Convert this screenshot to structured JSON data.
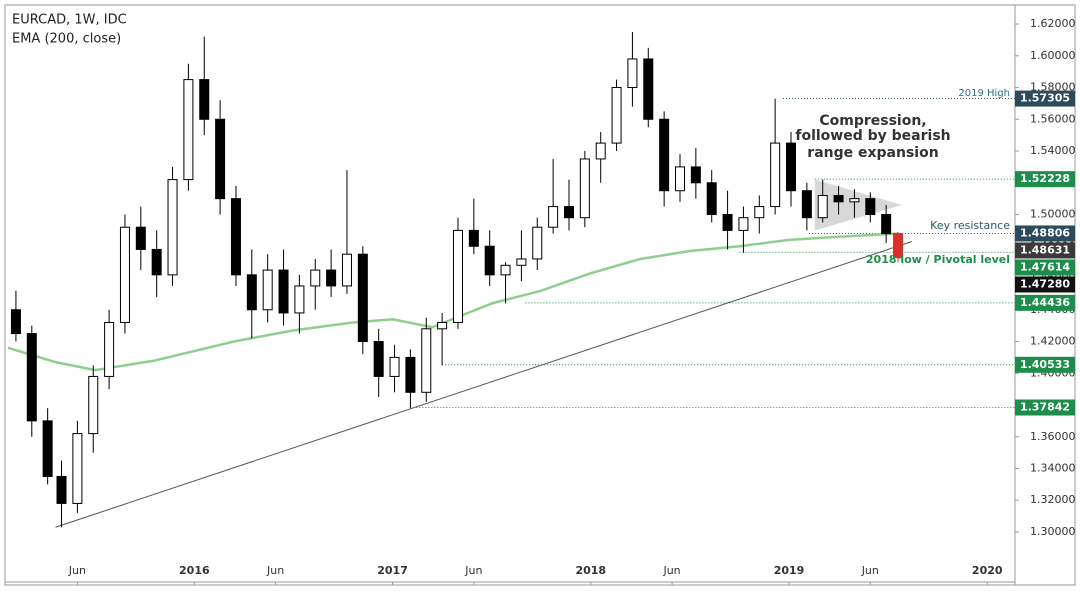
{
  "chart_data": {
    "type": "candlestick",
    "title": "EURCAD, 1W, IDC",
    "subtitle": "EMA (200, close)",
    "x": [
      2015.1,
      2015.18,
      2015.26,
      2015.33,
      2015.41,
      2015.49,
      2015.57,
      2015.65,
      2015.73,
      2015.81,
      2015.89,
      2015.97,
      2016.05,
      2016.13,
      2016.21,
      2016.29,
      2016.37,
      2016.45,
      2016.53,
      2016.61,
      2016.69,
      2016.77,
      2016.85,
      2016.93,
      2017.01,
      2017.09,
      2017.17,
      2017.25,
      2017.33,
      2017.41,
      2017.49,
      2017.57,
      2017.65,
      2017.73,
      2017.81,
      2017.89,
      2017.97,
      2018.05,
      2018.13,
      2018.21,
      2018.29,
      2018.37,
      2018.45,
      2018.53,
      2018.61,
      2018.69,
      2018.77,
      2018.85,
      2018.93,
      2019.01,
      2019.09,
      2019.17,
      2019.25,
      2019.33,
      2019.41,
      2019.49,
      2019.55
    ],
    "open": [
      1.44,
      1.425,
      1.37,
      1.335,
      1.318,
      1.362,
      1.398,
      1.432,
      1.492,
      1.478,
      1.462,
      1.522,
      1.585,
      1.56,
      1.51,
      1.462,
      1.44,
      1.465,
      1.438,
      1.455,
      1.465,
      1.455,
      1.475,
      1.42,
      1.398,
      1.41,
      1.388,
      1.428,
      1.432,
      1.49,
      1.48,
      1.462,
      1.468,
      1.472,
      1.492,
      1.505,
      1.498,
      1.535,
      1.545,
      1.58,
      1.598,
      1.56,
      1.515,
      1.53,
      1.52,
      1.5,
      1.49,
      1.498,
      1.505,
      1.545,
      1.515,
      1.498,
      1.512,
      1.508,
      1.51,
      1.5,
      1.488
    ],
    "high": [
      1.452,
      1.43,
      1.378,
      1.345,
      1.37,
      1.405,
      1.44,
      1.5,
      1.505,
      1.49,
      1.53,
      1.595,
      1.612,
      1.572,
      1.518,
      1.478,
      1.475,
      1.478,
      1.462,
      1.472,
      1.478,
      1.528,
      1.48,
      1.428,
      1.418,
      1.415,
      1.435,
      1.438,
      1.498,
      1.51,
      1.49,
      1.47,
      1.49,
      1.498,
      1.535,
      1.522,
      1.54,
      1.552,
      1.585,
      1.615,
      1.605,
      1.565,
      1.538,
      1.542,
      1.528,
      1.515,
      1.505,
      1.512,
      1.573,
      1.552,
      1.52,
      1.522,
      1.518,
      1.516,
      1.514,
      1.506,
      1.489
    ],
    "low": [
      1.42,
      1.36,
      1.33,
      1.303,
      1.312,
      1.35,
      1.39,
      1.425,
      1.465,
      1.448,
      1.455,
      1.515,
      1.55,
      1.5,
      1.455,
      1.422,
      1.432,
      1.43,
      1.425,
      1.44,
      1.448,
      1.45,
      1.412,
      1.385,
      1.388,
      1.378,
      1.382,
      1.405,
      1.428,
      1.475,
      1.455,
      1.444,
      1.458,
      1.465,
      1.488,
      1.49,
      1.492,
      1.52,
      1.54,
      1.568,
      1.555,
      1.505,
      1.508,
      1.51,
      1.495,
      1.478,
      1.476,
      1.488,
      1.5,
      1.505,
      1.49,
      1.495,
      1.5,
      1.498,
      1.495,
      1.482,
      1.47
    ],
    "close": [
      1.425,
      1.37,
      1.335,
      1.318,
      1.362,
      1.398,
      1.432,
      1.492,
      1.478,
      1.462,
      1.522,
      1.585,
      1.56,
      1.51,
      1.462,
      1.44,
      1.465,
      1.438,
      1.455,
      1.465,
      1.455,
      1.475,
      1.42,
      1.398,
      1.41,
      1.388,
      1.428,
      1.432,
      1.49,
      1.48,
      1.462,
      1.468,
      1.472,
      1.492,
      1.505,
      1.498,
      1.535,
      1.545,
      1.58,
      1.598,
      1.56,
      1.515,
      1.53,
      1.52,
      1.5,
      1.49,
      1.498,
      1.505,
      1.545,
      1.515,
      1.498,
      1.512,
      1.508,
      1.51,
      1.5,
      1.488,
      1.4728
    ],
    "up_color": "#ffffff",
    "down_color": "#000000",
    "last_color": "#d9302c",
    "ema": {
      "color": "#8fce8f",
      "x": [
        2015.06,
        2015.3,
        2015.5,
        2015.8,
        2016.2,
        2016.5,
        2016.8,
        2017.0,
        2017.2,
        2017.5,
        2017.75,
        2018.0,
        2018.25,
        2018.5,
        2018.75,
        2019.0,
        2019.25,
        2019.55
      ],
      "values": [
        1.416,
        1.407,
        1.402,
        1.408,
        1.42,
        1.427,
        1.432,
        1.434,
        1.429,
        1.444,
        1.452,
        1.463,
        1.472,
        1.477,
        1.48,
        1.484,
        1.486,
        1.488
      ]
    },
    "trendline": {
      "x": [
        2015.3,
        2019.62
      ],
      "y": [
        1.303,
        1.483
      ],
      "color": "#555555"
    },
    "triangle": {
      "x": [
        2019.13,
        2019.13,
        2019.57
      ],
      "y": [
        1.522,
        1.49,
        1.506
      ],
      "color": "#c8c8c8"
    },
    "levels": [
      {
        "value": 1.57305,
        "color": "#2b4a5c",
        "from": 2018.97
      },
      {
        "value": 1.52228,
        "color": "#1e8c4a",
        "from": 2019.13
      },
      {
        "value": 1.48806,
        "color": "#2b4a5c",
        "from": 2019.1
      },
      {
        "value": 1.48631,
        "color": "#3a3a3a"
      },
      {
        "value": 1.47614,
        "color": "#1e8c4a",
        "from": 2018.75
      },
      {
        "value": 1.4728,
        "label": "1.47280",
        "color": "#111111"
      },
      {
        "value": 1.44436,
        "color": "#1e8c4a",
        "from": 2017.67
      },
      {
        "value": 1.40533,
        "color": "#1e8c4a",
        "from": 2017.25
      },
      {
        "value": 1.37842,
        "color": "#1e8c4a",
        "from": 2017.12
      }
    ],
    "annotations": {
      "high": "2019 High",
      "resistance": "Key resistance",
      "pivot": "2018 low / Pivotal level",
      "compression": [
        "Compression,",
        "followed by bearish",
        "range expansion"
      ]
    },
    "xlim": [
      2015.06,
      2020.14
    ],
    "xticks": [
      {
        "value": 2015.41,
        "label": "Jun"
      },
      2016,
      {
        "value": 2016.41,
        "label": "Jun"
      },
      2017,
      {
        "value": 2017.41,
        "label": "Jun"
      },
      2018,
      {
        "value": 2018.41,
        "label": "Jun"
      },
      2019,
      {
        "value": 2019.41,
        "label": "Jun"
      },
      2020
    ],
    "ylim": [
      1.2685,
      1.6301
    ],
    "yticks": [
      {
        "value": 1.3,
        "label": "1.30000"
      },
      {
        "value": 1.32,
        "label": "1.32000"
      },
      {
        "value": 1.34,
        "label": "1.34000"
      },
      {
        "value": 1.36,
        "label": "1.36000"
      },
      {
        "value": 1.38,
        "label": "1.38000"
      },
      {
        "value": 1.4,
        "label": "1.40000"
      },
      {
        "value": 1.42,
        "label": "1.42000"
      },
      {
        "value": 1.44,
        "label": "1.44000"
      },
      {
        "value": 1.46,
        "label": "1.46000"
      },
      {
        "value": 1.48,
        "label": "1.48000"
      },
      {
        "value": 1.5,
        "label": "1.50000"
      },
      {
        "value": 1.52,
        "label": "1.52000"
      },
      {
        "value": 1.54,
        "label": "1.54000"
      },
      {
        "value": 1.56,
        "label": "1.56000"
      },
      {
        "value": 1.58,
        "label": "1.58000"
      },
      {
        "value": 1.6,
        "label": "1.60000"
      },
      {
        "value": 1.62,
        "label": "1.62000"
      }
    ]
  }
}
